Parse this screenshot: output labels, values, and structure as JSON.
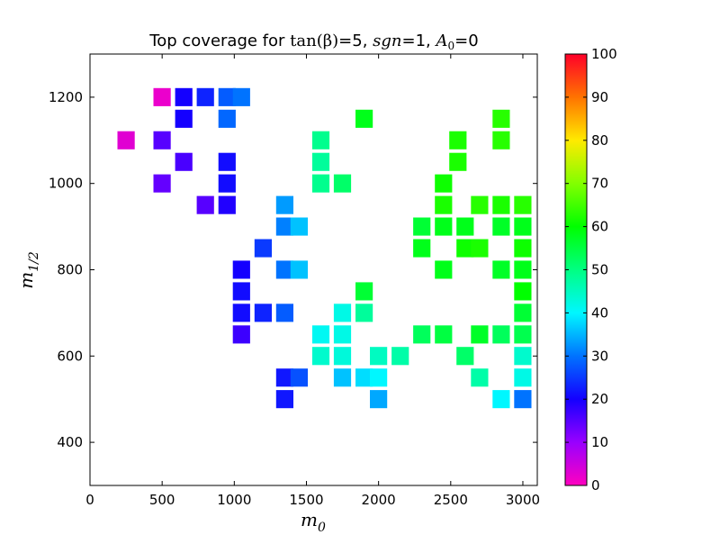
{
  "chart_data": {
    "type": "heatmap",
    "title_parts": {
      "prefix": "Top coverage for ",
      "tan": "tan(β)",
      "tan_val": "=5, ",
      "sgn": "sgn",
      "sgn_val": "=1, ",
      "a0": "A",
      "a0_sub": "0",
      "a0_val": "=0"
    },
    "xlabel": {
      "main": "m",
      "sub": "0"
    },
    "ylabel": {
      "main": "m",
      "sub": "1/2"
    },
    "xlim": [
      0,
      3100
    ],
    "ylim": [
      300,
      1300
    ],
    "xticks": [
      0,
      500,
      1000,
      1500,
      2000,
      2500,
      3000
    ],
    "yticks": [
      400,
      600,
      800,
      1000,
      1200
    ],
    "colorbar": {
      "range": [
        0,
        100
      ],
      "ticks": [
        0,
        10,
        20,
        30,
        40,
        50,
        60,
        70,
        80,
        90,
        100
      ],
      "colormap": "gist_rainbow_r"
    },
    "points": [
      {
        "x": 500,
        "y": 1200,
        "v": 2
      },
      {
        "x": 650,
        "y": 1200,
        "v": 20
      },
      {
        "x": 800,
        "y": 1200,
        "v": 23
      },
      {
        "x": 950,
        "y": 1200,
        "v": 28
      },
      {
        "x": 1050,
        "y": 1200,
        "v": 30
      },
      {
        "x": 650,
        "y": 1150,
        "v": 20
      },
      {
        "x": 950,
        "y": 1150,
        "v": 29
      },
      {
        "x": 1900,
        "y": 1150,
        "v": 58
      },
      {
        "x": 2850,
        "y": 1150,
        "v": 63
      },
      {
        "x": 250,
        "y": 1100,
        "v": 3
      },
      {
        "x": 500,
        "y": 1100,
        "v": 15
      },
      {
        "x": 1600,
        "y": 1100,
        "v": 49
      },
      {
        "x": 2550,
        "y": 1100,
        "v": 62
      },
      {
        "x": 2850,
        "y": 1100,
        "v": 63
      },
      {
        "x": 650,
        "y": 1050,
        "v": 16
      },
      {
        "x": 950,
        "y": 1050,
        "v": 21
      },
      {
        "x": 1600,
        "y": 1050,
        "v": 48
      },
      {
        "x": 2550,
        "y": 1050,
        "v": 62
      },
      {
        "x": 500,
        "y": 1000,
        "v": 14
      },
      {
        "x": 950,
        "y": 1000,
        "v": 21
      },
      {
        "x": 1600,
        "y": 1000,
        "v": 49
      },
      {
        "x": 1750,
        "y": 1000,
        "v": 52
      },
      {
        "x": 2450,
        "y": 1000,
        "v": 61
      },
      {
        "x": 800,
        "y": 950,
        "v": 15
      },
      {
        "x": 950,
        "y": 950,
        "v": 19
      },
      {
        "x": 1350,
        "y": 950,
        "v": 33
      },
      {
        "x": 2450,
        "y": 950,
        "v": 62
      },
      {
        "x": 2700,
        "y": 950,
        "v": 63
      },
      {
        "x": 2850,
        "y": 950,
        "v": 62
      },
      {
        "x": 3000,
        "y": 950,
        "v": 63
      },
      {
        "x": 1350,
        "y": 900,
        "v": 31
      },
      {
        "x": 1450,
        "y": 900,
        "v": 36
      },
      {
        "x": 2300,
        "y": 900,
        "v": 56
      },
      {
        "x": 2450,
        "y": 900,
        "v": 58
      },
      {
        "x": 2600,
        "y": 900,
        "v": 58
      },
      {
        "x": 2850,
        "y": 900,
        "v": 57
      },
      {
        "x": 3000,
        "y": 900,
        "v": 58
      },
      {
        "x": 1200,
        "y": 850,
        "v": 25
      },
      {
        "x": 2300,
        "y": 850,
        "v": 58
      },
      {
        "x": 2600,
        "y": 850,
        "v": 61
      },
      {
        "x": 2700,
        "y": 850,
        "v": 62
      },
      {
        "x": 3000,
        "y": 850,
        "v": 61
      },
      {
        "x": 1050,
        "y": 800,
        "v": 20
      },
      {
        "x": 1350,
        "y": 800,
        "v": 30
      },
      {
        "x": 1450,
        "y": 800,
        "v": 36
      },
      {
        "x": 2450,
        "y": 800,
        "v": 58
      },
      {
        "x": 2850,
        "y": 800,
        "v": 57
      },
      {
        "x": 3000,
        "y": 800,
        "v": 58
      },
      {
        "x": 1050,
        "y": 750,
        "v": 21
      },
      {
        "x": 1900,
        "y": 750,
        "v": 56
      },
      {
        "x": 3000,
        "y": 750,
        "v": 60
      },
      {
        "x": 1050,
        "y": 700,
        "v": 21
      },
      {
        "x": 1200,
        "y": 700,
        "v": 23
      },
      {
        "x": 1350,
        "y": 700,
        "v": 28
      },
      {
        "x": 1750,
        "y": 700,
        "v": 42
      },
      {
        "x": 1900,
        "y": 700,
        "v": 48
      },
      {
        "x": 3000,
        "y": 700,
        "v": 56
      },
      {
        "x": 1050,
        "y": 650,
        "v": 17
      },
      {
        "x": 1600,
        "y": 650,
        "v": 41
      },
      {
        "x": 1750,
        "y": 650,
        "v": 42
      },
      {
        "x": 2300,
        "y": 650,
        "v": 53
      },
      {
        "x": 2450,
        "y": 650,
        "v": 55
      },
      {
        "x": 2700,
        "y": 650,
        "v": 57
      },
      {
        "x": 2850,
        "y": 650,
        "v": 53
      },
      {
        "x": 3000,
        "y": 650,
        "v": 54
      },
      {
        "x": 1600,
        "y": 600,
        "v": 44
      },
      {
        "x": 1750,
        "y": 600,
        "v": 43
      },
      {
        "x": 2000,
        "y": 600,
        "v": 45
      },
      {
        "x": 2150,
        "y": 600,
        "v": 47
      },
      {
        "x": 2600,
        "y": 600,
        "v": 52
      },
      {
        "x": 3000,
        "y": 600,
        "v": 44
      },
      {
        "x": 1350,
        "y": 550,
        "v": 22
      },
      {
        "x": 1450,
        "y": 550,
        "v": 27
      },
      {
        "x": 1750,
        "y": 550,
        "v": 36
      },
      {
        "x": 1900,
        "y": 550,
        "v": 38
      },
      {
        "x": 2000,
        "y": 550,
        "v": 40
      },
      {
        "x": 2700,
        "y": 550,
        "v": 47
      },
      {
        "x": 3000,
        "y": 550,
        "v": 42
      },
      {
        "x": 1350,
        "y": 500,
        "v": 22
      },
      {
        "x": 2000,
        "y": 500,
        "v": 34
      },
      {
        "x": 2850,
        "y": 500,
        "v": 40
      },
      {
        "x": 3000,
        "y": 500,
        "v": 30
      }
    ]
  }
}
